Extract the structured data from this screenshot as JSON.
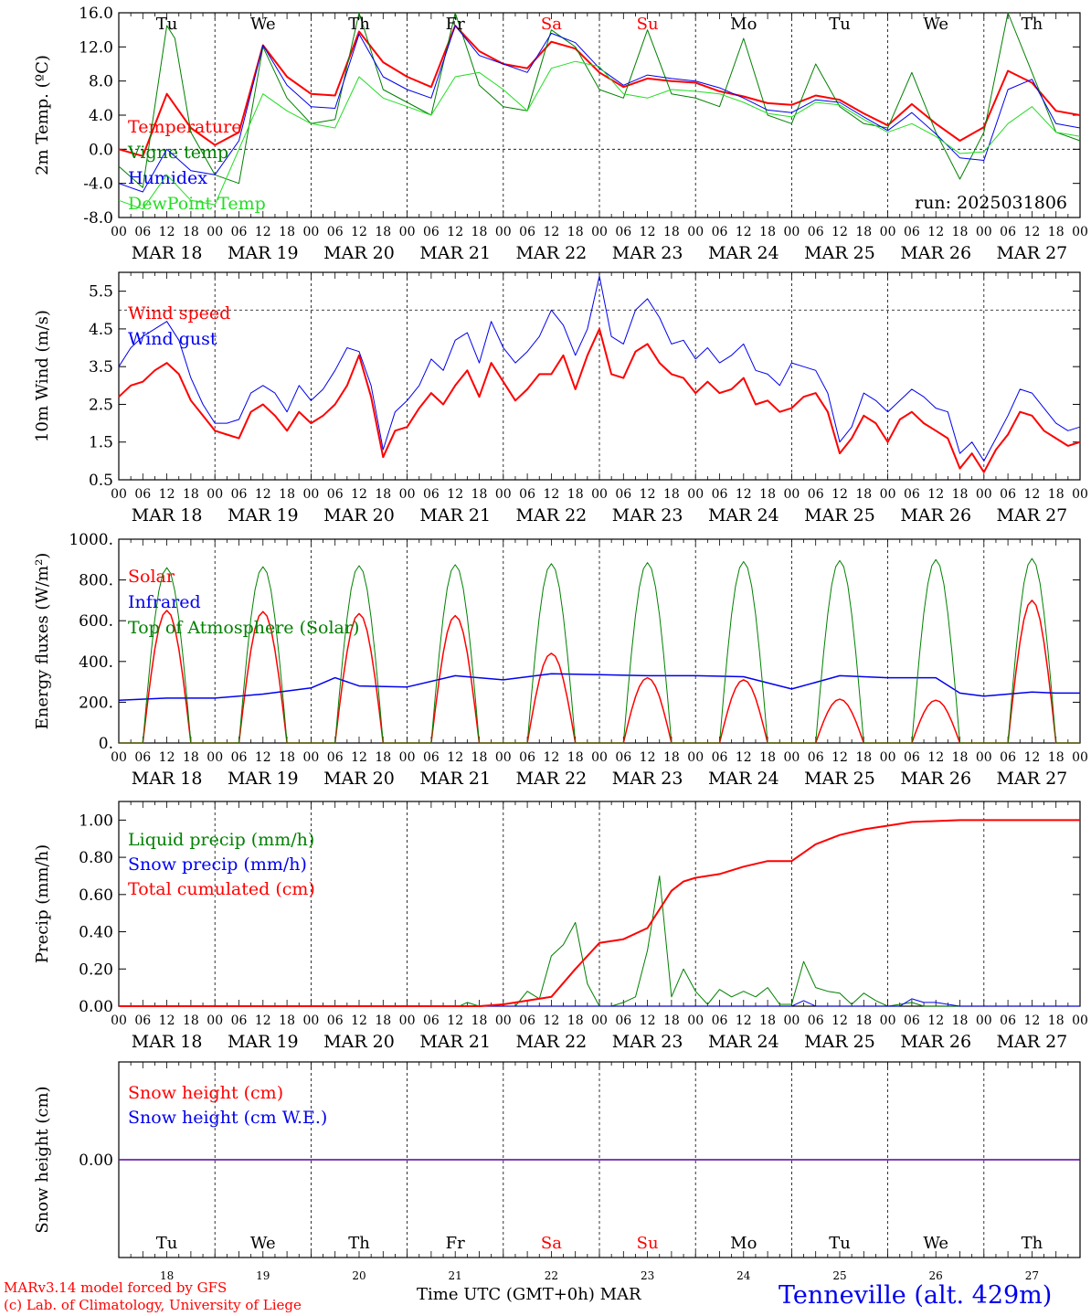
{
  "colors": {
    "red": "#ff0000",
    "blue": "#0000ee",
    "green": "#008000",
    "lightgreen": "#22dd22",
    "black": "#000000",
    "weekend": "#ff0000"
  },
  "days": {
    "dates": [
      "MAR 18",
      "MAR 19",
      "MAR 20",
      "MAR 21",
      "MAR 22",
      "MAR 23",
      "MAR 24",
      "MAR 25",
      "MAR 26",
      "MAR 27"
    ],
    "names": [
      "Tu",
      "We",
      "Th",
      "Fr",
      "Sa",
      "Su",
      "Mo",
      "Tu",
      "We",
      "Th"
    ],
    "weekend": [
      false,
      false,
      false,
      false,
      true,
      true,
      false,
      false,
      false,
      false
    ],
    "hour_ticks": [
      "00",
      "06",
      "12",
      "18"
    ],
    "numbers": [
      "18",
      "19",
      "20",
      "21",
      "22",
      "23",
      "24",
      "25",
      "26",
      "27"
    ]
  },
  "run_label": "run: 2025031806",
  "footer": {
    "line1": "MARv3.14 model forced by GFS",
    "line2": "(c) Lab. of Climatology, University of Liege",
    "xaxis": "Time UTC (GMT+0h)",
    "month": "MAR",
    "station": "Tenneville (alt. 429m)"
  },
  "chart_data": [
    {
      "type": "line",
      "ylabel": "2m Temp. (ºC)",
      "ylim": [
        -8,
        16
      ],
      "yticks": [
        "16.0",
        "12.0",
        "8.0",
        "4.0",
        "0.0",
        "-4.0",
        "-8.0"
      ],
      "ref_line": 0,
      "x_unit": "hours since MAR 18 00 UTC",
      "series": [
        {
          "name": "Temperature",
          "color": "#ff0000",
          "width": 2,
          "x": [
            0,
            6,
            12,
            18,
            24,
            30,
            36,
            42,
            48,
            54,
            60,
            66,
            72,
            78,
            84,
            90,
            96,
            102,
            108,
            114,
            120,
            126,
            132,
            138,
            144,
            150,
            156,
            162,
            168,
            174,
            180,
            186,
            192,
            198,
            204,
            210,
            216,
            222,
            228,
            234,
            240
          ],
          "values": [
            0.0,
            -0.8,
            6.5,
            2.5,
            0.5,
            2.0,
            12.2,
            8.5,
            6.5,
            6.3,
            13.8,
            10.2,
            8.5,
            7.3,
            14.5,
            11.5,
            10.0,
            9.5,
            12.6,
            11.8,
            9.0,
            7.3,
            8.3,
            8.0,
            7.8,
            6.8,
            6.2,
            5.4,
            5.2,
            6.3,
            5.8,
            4.2,
            2.8,
            5.3,
            3.0,
            1.0,
            2.6,
            9.2,
            7.8,
            4.5,
            4.0
          ]
        },
        {
          "name": "Vigne temp",
          "color": "#008000",
          "width": 1,
          "x": [
            0,
            6,
            9,
            12,
            14,
            18,
            24,
            30,
            36,
            42,
            48,
            54,
            60,
            66,
            72,
            78,
            84,
            90,
            96,
            102,
            108,
            114,
            120,
            126,
            132,
            138,
            144,
            150,
            156,
            162,
            168,
            174,
            180,
            186,
            192,
            198,
            204,
            210,
            216,
            222,
            228,
            234,
            240
          ],
          "values": [
            -2.0,
            -4.5,
            5.0,
            14.5,
            13.0,
            2.0,
            -3.0,
            -4.0,
            12.0,
            6.0,
            3.0,
            3.5,
            16.5,
            7.0,
            5.5,
            4.0,
            17.0,
            7.5,
            5.0,
            4.5,
            14.0,
            12.0,
            7.0,
            6.0,
            14.0,
            6.5,
            6.0,
            5.0,
            13.0,
            4.0,
            3.0,
            10.0,
            5.0,
            3.0,
            2.5,
            9.0,
            2.0,
            -3.5,
            2.0,
            16.0,
            9.0,
            2.0,
            1.0
          ]
        },
        {
          "name": "Humidex",
          "color": "#0000ee",
          "width": 1,
          "x": [
            0,
            6,
            12,
            18,
            24,
            30,
            36,
            42,
            48,
            54,
            60,
            66,
            72,
            78,
            84,
            90,
            96,
            102,
            108,
            114,
            120,
            126,
            132,
            138,
            144,
            150,
            156,
            162,
            168,
            174,
            180,
            186,
            192,
            198,
            204,
            210,
            216,
            222,
            228,
            234,
            240
          ],
          "values": [
            -4.0,
            -5.0,
            0.0,
            -2.5,
            -3.0,
            1.0,
            12.2,
            7.5,
            5.0,
            4.8,
            13.5,
            8.5,
            7.0,
            6.0,
            14.5,
            11.0,
            10.0,
            9.0,
            13.6,
            12.5,
            9.5,
            7.5,
            8.7,
            8.3,
            8.0,
            7.2,
            6.0,
            4.6,
            4.3,
            5.8,
            5.5,
            3.8,
            2.2,
            4.3,
            1.8,
            -1.0,
            -1.3,
            7.0,
            8.2,
            3.0,
            2.5
          ]
        },
        {
          "name": "DewPoint Temp",
          "color": "#22dd22",
          "width": 1,
          "x": [
            0,
            6,
            12,
            18,
            24,
            30,
            36,
            42,
            48,
            54,
            60,
            66,
            72,
            78,
            84,
            90,
            96,
            102,
            108,
            114,
            120,
            126,
            132,
            138,
            144,
            150,
            156,
            162,
            168,
            174,
            180,
            186,
            192,
            198,
            204,
            210,
            216,
            222,
            228,
            234,
            240
          ],
          "values": [
            -6.0,
            -7.0,
            -3.0,
            -6.0,
            -6.5,
            0.0,
            6.5,
            4.5,
            3.0,
            2.5,
            8.5,
            6.0,
            5.0,
            4.0,
            8.5,
            9.0,
            7.0,
            4.5,
            9.5,
            10.3,
            9.7,
            6.5,
            6.0,
            7.0,
            6.8,
            6.5,
            5.5,
            4.2,
            3.8,
            5.5,
            5.2,
            3.5,
            2.0,
            3.0,
            1.5,
            -0.5,
            -0.3,
            3.0,
            5.0,
            2.0,
            1.5
          ]
        }
      ]
    },
    {
      "type": "line",
      "ylabel": "10m Wind (m/s)",
      "ylim": [
        0.5,
        6
      ],
      "yticks": [
        "5.5",
        "4.5",
        "3.5",
        "2.5",
        "1.5",
        "0.5"
      ],
      "ref_line": 5,
      "x_unit": "hours since MAR 18 00 UTC",
      "series": [
        {
          "name": "Wind speed",
          "color": "#ff0000",
          "width": 2,
          "x": [
            0,
            3,
            6,
            9,
            12,
            15,
            18,
            21,
            24,
            27,
            30,
            33,
            36,
            39,
            42,
            45,
            48,
            51,
            54,
            57,
            60,
            63,
            66,
            69,
            72,
            75,
            78,
            81,
            84,
            87,
            90,
            93,
            96,
            99,
            102,
            105,
            108,
            111,
            114,
            117,
            120,
            123,
            126,
            129,
            132,
            135,
            138,
            141,
            144,
            147,
            150,
            153,
            156,
            159,
            162,
            165,
            168,
            171,
            174,
            177,
            180,
            183,
            186,
            189,
            192,
            195,
            198,
            201,
            204,
            207,
            210,
            213,
            216,
            219,
            222,
            225,
            228,
            231,
            234,
            237,
            240
          ],
          "values": [
            2.7,
            3.0,
            3.1,
            3.4,
            3.6,
            3.3,
            2.6,
            2.2,
            1.8,
            1.7,
            1.6,
            2.3,
            2.5,
            2.2,
            1.8,
            2.3,
            2.0,
            2.2,
            2.5,
            3.0,
            3.8,
            2.7,
            1.1,
            1.8,
            1.9,
            2.4,
            2.8,
            2.5,
            3.0,
            3.4,
            2.7,
            3.6,
            3.1,
            2.6,
            2.9,
            3.3,
            3.3,
            3.8,
            2.9,
            3.8,
            4.5,
            3.3,
            3.2,
            3.9,
            4.1,
            3.6,
            3.3,
            3.2,
            2.8,
            3.1,
            2.8,
            2.9,
            3.2,
            2.5,
            2.6,
            2.3,
            2.4,
            2.7,
            2.8,
            2.3,
            1.2,
            1.6,
            2.2,
            2.0,
            1.5,
            2.1,
            2.3,
            2.0,
            1.8,
            1.6,
            0.8,
            1.2,
            0.7,
            1.3,
            1.7,
            2.3,
            2.2,
            1.8,
            1.6,
            1.4,
            1.5
          ]
        },
        {
          "name": "Wind gust",
          "color": "#0000ee",
          "width": 1,
          "x": [
            0,
            3,
            6,
            9,
            12,
            15,
            18,
            21,
            24,
            27,
            30,
            33,
            36,
            39,
            42,
            45,
            48,
            51,
            54,
            57,
            60,
            63,
            66,
            69,
            72,
            75,
            78,
            81,
            84,
            87,
            90,
            93,
            96,
            99,
            102,
            105,
            108,
            111,
            114,
            117,
            120,
            123,
            126,
            129,
            132,
            135,
            138,
            141,
            144,
            147,
            150,
            153,
            156,
            159,
            162,
            165,
            168,
            171,
            174,
            177,
            180,
            183,
            186,
            189,
            192,
            195,
            198,
            201,
            204,
            207,
            210,
            213,
            216,
            219,
            222,
            225,
            228,
            231,
            234,
            237,
            240
          ],
          "values": [
            3.5,
            4.0,
            4.3,
            4.5,
            4.7,
            4.2,
            3.2,
            2.5,
            2.0,
            2.0,
            2.1,
            2.8,
            3.0,
            2.8,
            2.3,
            3.0,
            2.6,
            2.9,
            3.4,
            4.0,
            3.9,
            3.0,
            1.3,
            2.3,
            2.6,
            3.0,
            3.7,
            3.4,
            4.2,
            4.4,
            3.6,
            4.7,
            4.0,
            3.6,
            3.9,
            4.3,
            5.0,
            4.6,
            3.8,
            4.5,
            5.9,
            4.3,
            4.1,
            5.0,
            5.3,
            4.8,
            4.1,
            4.2,
            3.7,
            4.0,
            3.6,
            3.8,
            4.1,
            3.4,
            3.3,
            3.0,
            3.6,
            3.5,
            3.4,
            2.8,
            1.5,
            1.9,
            2.8,
            2.6,
            2.3,
            2.6,
            2.9,
            2.7,
            2.4,
            2.3,
            1.2,
            1.5,
            1.0,
            1.6,
            2.2,
            2.9,
            2.8,
            2.4,
            2.0,
            1.8,
            1.9
          ]
        }
      ]
    },
    {
      "type": "line",
      "ylabel": "Energy fluxes (W/m²)",
      "ylim": [
        0,
        1000
      ],
      "yticks": [
        "1000.",
        "800.",
        "600.",
        "400.",
        "200.",
        "0."
      ],
      "x_unit": "hours since MAR 18 00 UTC",
      "sun_hours": [
        6,
        18
      ],
      "series": [
        {
          "name": "Solar",
          "color": "#ff0000",
          "width": 1.5,
          "daily_peaks": [
            650,
            645,
            635,
            625,
            440,
            320,
            310,
            215,
            210,
            700
          ]
        },
        {
          "name": "Infrared",
          "color": "#0000ee",
          "width": 1.5,
          "x": [
            0,
            12,
            24,
            36,
            48,
            54,
            60,
            72,
            84,
            96,
            108,
            120,
            132,
            144,
            156,
            168,
            180,
            192,
            204,
            210,
            216,
            228,
            234,
            240
          ],
          "values": [
            210,
            220,
            220,
            240,
            270,
            320,
            280,
            275,
            330,
            310,
            340,
            335,
            330,
            330,
            325,
            265,
            330,
            320,
            320,
            245,
            230,
            250,
            245,
            245
          ]
        },
        {
          "name": "Top of Atmosphere (Solar)",
          "color": "#008000",
          "width": 1,
          "daily_peaks": [
            860,
            865,
            870,
            875,
            880,
            885,
            890,
            895,
            900,
            905
          ]
        }
      ]
    },
    {
      "type": "line",
      "ylabel": "Precip (mm/h)",
      "ylim": [
        0,
        1.1
      ],
      "yticks": [
        "1.00",
        "0.80",
        "0.60",
        "0.40",
        "0.20",
        "0.00"
      ],
      "x_unit": "hours since MAR 18 00 UTC",
      "series": [
        {
          "name": "Liquid precip (mm/h)",
          "color": "#008000",
          "width": 1,
          "x": [
            0,
            85,
            87,
            90,
            99,
            102,
            105,
            108,
            111,
            114,
            117,
            120,
            123,
            126,
            129,
            132,
            135,
            138,
            141,
            144,
            147,
            150,
            153,
            156,
            159,
            162,
            165,
            168,
            171,
            174,
            177,
            180,
            183,
            186,
            189,
            192,
            195,
            198,
            201,
            204,
            210,
            240
          ],
          "values": [
            0,
            0,
            0.02,
            0,
            0,
            0.08,
            0.04,
            0.27,
            0.33,
            0.45,
            0.12,
            0,
            0,
            0.02,
            0.05,
            0.3,
            0.7,
            0.05,
            0.2,
            0.08,
            0.01,
            0.09,
            0.05,
            0.08,
            0.05,
            0.1,
            0.01,
            0.01,
            0.24,
            0.1,
            0.08,
            0.07,
            0.01,
            0.07,
            0.03,
            0,
            0.01,
            0.02,
            0,
            0,
            0,
            0
          ]
        },
        {
          "name": "Snow precip (mm/h)",
          "color": "#0000ee",
          "width": 1,
          "x": [
            0,
            168,
            171,
            174,
            195,
            198,
            201,
            204,
            207,
            210,
            240
          ],
          "values": [
            0,
            0,
            0.03,
            0,
            0,
            0.04,
            0.02,
            0.02,
            0.01,
            0,
            0
          ]
        },
        {
          "name": "Total cumulated (cm)",
          "color": "#ff0000",
          "width": 2,
          "x": [
            0,
            90,
            96,
            102,
            108,
            114,
            120,
            126,
            132,
            138,
            141,
            144,
            150,
            156,
            162,
            168,
            174,
            180,
            186,
            192,
            198,
            210,
            222,
            240
          ],
          "values": [
            0,
            0,
            0.01,
            0.03,
            0.05,
            0.2,
            0.34,
            0.36,
            0.42,
            0.62,
            0.67,
            0.69,
            0.71,
            0.75,
            0.78,
            0.78,
            0.87,
            0.92,
            0.95,
            0.97,
            0.99,
            1.0,
            1.0,
            1.0
          ]
        }
      ]
    },
    {
      "type": "line",
      "ylabel": "Snow height (cm)",
      "ylim": [
        -1,
        1
      ],
      "yticks": [
        "0.00"
      ],
      "x_unit": "hours since MAR 18 00 UTC",
      "series": [
        {
          "name": "Snow height (cm)",
          "color": "#ff0000",
          "width": 1.5,
          "x": [
            0,
            240
          ],
          "values": [
            0,
            0
          ]
        },
        {
          "name": "Snow height (cm W.E.)",
          "color": "#0000ee",
          "width": 1,
          "x": [
            0,
            240
          ],
          "values": [
            0,
            0
          ]
        }
      ]
    }
  ]
}
